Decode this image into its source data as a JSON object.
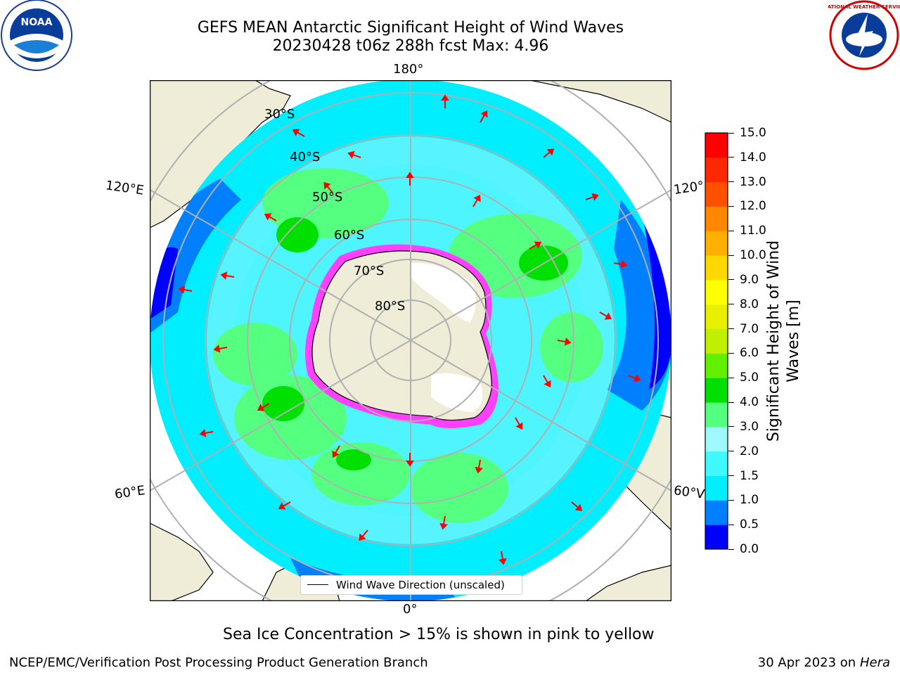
{
  "title_line1": "GEFS MEAN Antarctic Significant Height of Wind Waves",
  "title_line2": "20230428 t06z 288h fcst   Max: 4.96",
  "map": {
    "longitude_labels": {
      "top": "180°",
      "bottom": "0°",
      "upper_left": "120°E",
      "upper_right": "120°",
      "lower_left": "60°E",
      "lower_right": "60°V"
    },
    "latitude_labels": [
      "30°S",
      "40°S",
      "50°S",
      "60°S",
      "70°S",
      "80°S"
    ],
    "legend": "Wind Wave Direction (unscaled)",
    "colors": {
      "ocean_low": "#0000ff",
      "ocean_blue": "#0080ff",
      "ocean_cyan": "#00eeff",
      "ocean_light": "#9ff7ff",
      "ocean_green": "#55ff80",
      "ocean_bright_green": "#00e000",
      "land": "#efedd8",
      "sea_ice": "#ff40ff",
      "arrow": "#ff0000"
    }
  },
  "colorbar": {
    "title": "Significant Height of Wind Waves [m]",
    "title_line1": "Significant Height of Wind",
    "title_line2": "Waves [m]",
    "ticks": [
      "0.0",
      "0.5",
      "1.0",
      "1.5",
      "2.0",
      "3.0",
      "4.0",
      "5.0",
      "6.0",
      "7.0",
      "8.0",
      "9.0",
      "10.0",
      "11.0",
      "12.0",
      "13.0",
      "14.0",
      "15.0"
    ],
    "colors": [
      "#0000ff",
      "#0080ff",
      "#00eeff",
      "#40f8ff",
      "#9ff7ff",
      "#55ff80",
      "#00e000",
      "#60f000",
      "#c0f000",
      "#e8f000",
      "#ffff00",
      "#ffd800",
      "#ffb000",
      "#ff8800",
      "#ff5000",
      "#ff2800",
      "#ff0000"
    ]
  },
  "sea_ice_note": "Sea Ice Concentration > 15% is shown in pink to yellow",
  "footer_left": "NCEP/EMC/Verification Post Processing Product Generation Branch",
  "footer_date": "30 Apr 2023 on ",
  "footer_host": "Hera",
  "logos": {
    "left": "NOAA",
    "right": "NATIONAL WEATHER SERVICE"
  }
}
